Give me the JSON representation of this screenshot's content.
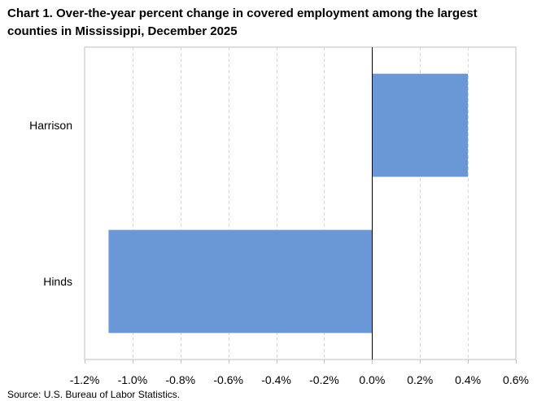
{
  "title_line1": "Chart 1. Over-the-year percent change in covered employment among the largest",
  "title_line2": "counties in Mississippi,  December 2025",
  "source": "Source: U.S. Bureau of Labor Statistics.",
  "chart_data": {
    "type": "bar",
    "orientation": "horizontal",
    "categories": [
      "Harrison",
      "Hinds"
    ],
    "values": [
      0.4,
      -1.1
    ],
    "unit": "%",
    "xlim": [
      -1.2,
      0.6
    ],
    "xticks": [
      -1.2,
      -1.0,
      -0.8,
      -0.6,
      -0.4,
      -0.2,
      0.0,
      0.2,
      0.4,
      0.6
    ],
    "xtick_labels": [
      "-1.2%",
      "-1.0%",
      "-0.8%",
      "-0.6%",
      "-0.4%",
      "-0.2%",
      "0.0%",
      "0.2%",
      "0.4%",
      "0.6%"
    ],
    "grid": "vertical dashed",
    "legend": "none",
    "bar_color": "#6a98d6"
  }
}
